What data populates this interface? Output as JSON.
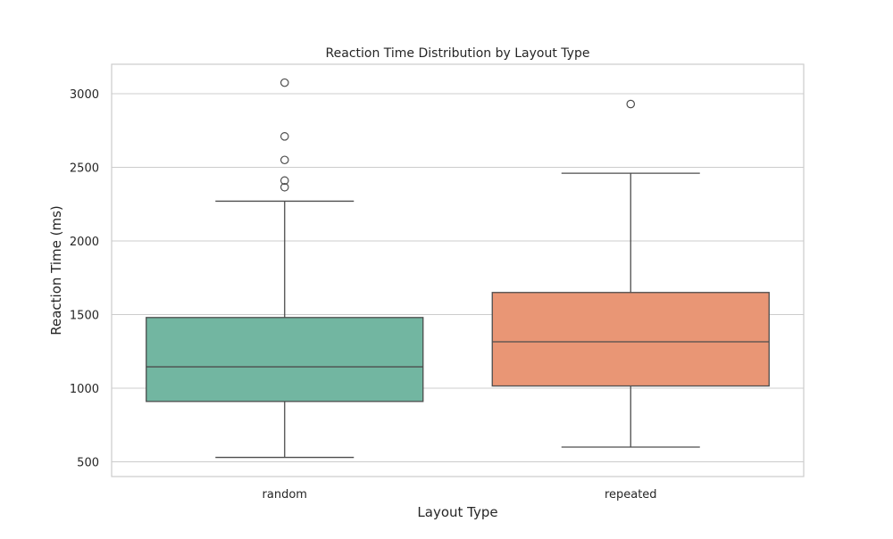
{
  "chart_data": {
    "type": "box",
    "title": "Reaction Time Distribution by Layout Type",
    "xlabel": "Layout Type",
    "ylabel": "Reaction Time (ms)",
    "ylim": [
      400,
      3200
    ],
    "yticks": [
      500,
      1000,
      1500,
      2000,
      2500,
      3000
    ],
    "grid": "horizontal",
    "categories": [
      "random",
      "repeated"
    ],
    "boxes": [
      {
        "category": "random",
        "color": "#72b6a1",
        "whisker_low": 530,
        "q1": 910,
        "median": 1145,
        "q3": 1480,
        "whisker_high": 2270,
        "outliers": [
          2365,
          2410,
          2550,
          2710,
          3075
        ]
      },
      {
        "category": "repeated",
        "color": "#e99675",
        "whisker_low": 600,
        "q1": 1015,
        "median": 1315,
        "q3": 1650,
        "whisker_high": 2460,
        "outliers": [
          2930
        ]
      }
    ]
  }
}
